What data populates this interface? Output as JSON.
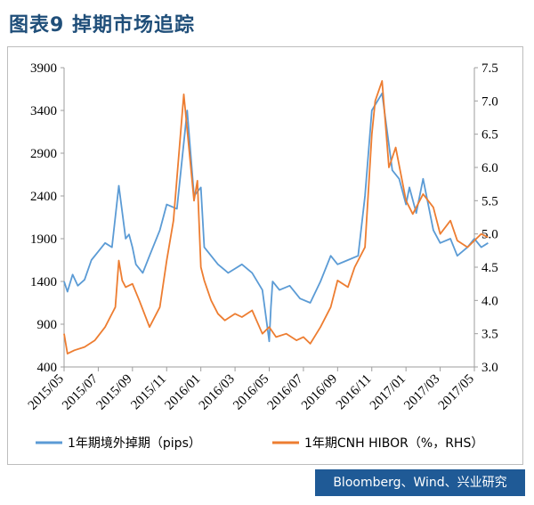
{
  "title": "图表9  掉期市场追踪",
  "source": "Bloomberg、Wind、兴业研究",
  "colors": {
    "swap": "#5b9bd5",
    "hibor": "#ed7d31",
    "title": "#1f4e79",
    "source_bg": "#1f5a96"
  },
  "chart_data": {
    "type": "line",
    "title": "",
    "left_axis": {
      "ticks": [
        400,
        900,
        1400,
        1900,
        2400,
        2900,
        3400,
        3900
      ],
      "range": [
        400,
        3900
      ]
    },
    "right_axis": {
      "ticks": [
        "3.0",
        "3.5",
        "4.0",
        "4.5",
        "5.0",
        "5.5",
        "6.0",
        "6.5",
        "7.0",
        "7.5"
      ],
      "range": [
        3.0,
        7.5
      ]
    },
    "x_ticks": [
      "2015/05",
      "2015/07",
      "2015/09",
      "2015/11",
      "2016/01",
      "2016/03",
      "2016/05",
      "2016/07",
      "2016/09",
      "2016/11",
      "2017/01",
      "2017/03",
      "2017/05"
    ],
    "grid": false,
    "legend_position": "bottom",
    "series": [
      {
        "name": "1年期境外掉期（pips）",
        "axis": "left",
        "x": [
          0,
          0.1,
          0.25,
          0.4,
          0.6,
          0.8,
          1.0,
          1.2,
          1.4,
          1.6,
          1.8,
          1.9,
          2.0,
          2.1,
          2.3,
          2.5,
          2.8,
          3.0,
          3.3,
          3.6,
          3.8,
          4.0,
          4.1,
          4.3,
          4.5,
          4.8,
          5.0,
          5.2,
          5.5,
          5.8,
          6.0,
          6.05,
          6.1,
          6.3,
          6.6,
          6.9,
          7.2,
          7.5,
          7.8,
          8.0,
          8.3,
          8.6,
          8.8,
          9.0,
          9.3,
          9.6,
          9.8,
          10.0,
          10.1,
          10.3,
          10.5,
          10.8,
          11.0,
          11.3,
          11.5,
          11.8,
          12.0,
          12.2,
          12.4
        ],
        "values": [
          1400,
          1280,
          1480,
          1350,
          1420,
          1650,
          1750,
          1850,
          1800,
          2520,
          1900,
          1950,
          1800,
          1600,
          1500,
          1700,
          2000,
          2300,
          2250,
          3400,
          2400,
          2500,
          1800,
          1700,
          1600,
          1500,
          1550,
          1600,
          1500,
          1300,
          700,
          1100,
          1400,
          1300,
          1350,
          1200,
          1150,
          1400,
          1700,
          1600,
          1650,
          1700,
          2400,
          3400,
          3600,
          2700,
          2600,
          2300,
          2500,
          2200,
          2600,
          2000,
          1850,
          1900,
          1700,
          1800,
          1900,
          1800,
          1850
        ]
      },
      {
        "name": "1年期CNH HIBOR（%，RHS）",
        "axis": "right",
        "x": [
          0,
          0.1,
          0.3,
          0.6,
          0.9,
          1.2,
          1.5,
          1.6,
          1.7,
          1.8,
          2.0,
          2.2,
          2.5,
          2.8,
          3.0,
          3.2,
          3.5,
          3.8,
          3.9,
          4.0,
          4.1,
          4.3,
          4.5,
          4.7,
          5.0,
          5.2,
          5.5,
          5.8,
          6.0,
          6.2,
          6.5,
          6.8,
          7.0,
          7.2,
          7.5,
          7.8,
          8.0,
          8.3,
          8.5,
          8.8,
          9.0,
          9.1,
          9.3,
          9.5,
          9.7,
          10.0,
          10.2,
          10.5,
          10.8,
          11.0,
          11.3,
          11.5,
          11.8,
          12.0,
          12.2,
          12.4
        ],
        "values": [
          3.5,
          3.2,
          3.25,
          3.3,
          3.4,
          3.6,
          3.9,
          4.6,
          4.3,
          4.2,
          4.25,
          4.0,
          3.6,
          3.9,
          4.6,
          5.2,
          7.1,
          5.5,
          5.8,
          4.5,
          4.3,
          4.0,
          3.8,
          3.7,
          3.8,
          3.75,
          3.85,
          3.5,
          3.6,
          3.45,
          3.5,
          3.4,
          3.45,
          3.35,
          3.6,
          3.9,
          4.3,
          4.2,
          4.5,
          4.8,
          6.5,
          7.0,
          7.3,
          6.0,
          6.3,
          5.5,
          5.3,
          5.6,
          5.4,
          5.0,
          5.2,
          4.9,
          4.8,
          4.9,
          5.0,
          4.95
        ]
      }
    ]
  }
}
